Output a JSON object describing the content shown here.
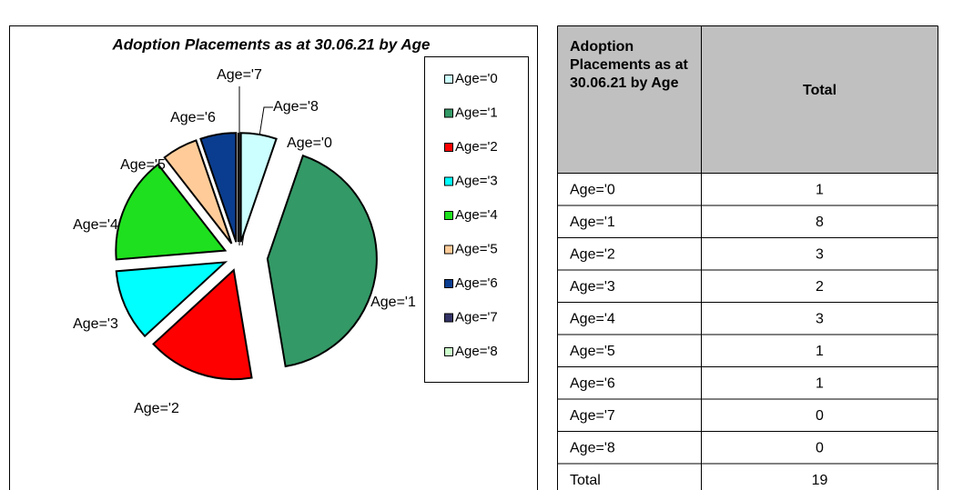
{
  "chart_data": {
    "type": "pie",
    "title": "Adoption Placements as at 30.06.21 by Age",
    "categories": [
      "Age='0",
      "Age='1",
      "Age='2",
      "Age='3",
      "Age='4",
      "Age='5",
      "Age='6",
      "Age='7",
      "Age='8"
    ],
    "values": [
      1,
      8,
      3,
      2,
      3,
      1,
      1,
      0,
      0
    ],
    "colors": [
      "#ccffff",
      "#339966",
      "#ff0000",
      "#00ffff",
      "#1ee01e",
      "#ffcc99",
      "#0a3d8f",
      "#333366",
      "#ccffcc"
    ],
    "legend": "right"
  },
  "table": {
    "header": [
      "Adoption Placements as at 30.06.21 by Age",
      "Total"
    ],
    "total_label": "Total",
    "total": 19
  }
}
